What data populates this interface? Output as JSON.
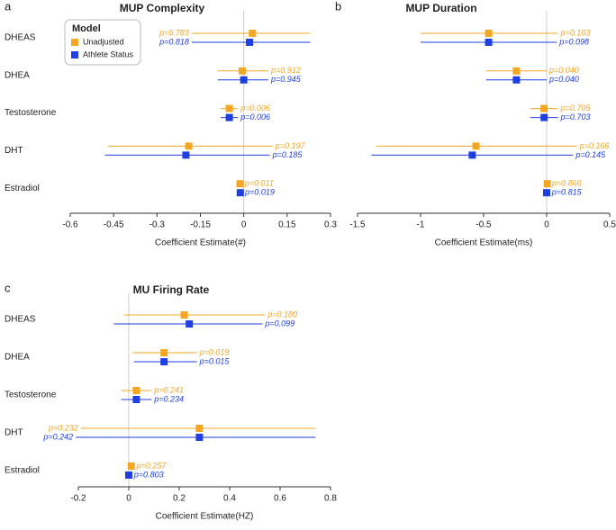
{
  "chart_data": [
    {
      "type": "forest",
      "panel": "a",
      "title": "MUP Complexity",
      "xlabel": "Coefficient Estimate(#)",
      "legend_title": "Model",
      "categories": [
        "DHEAS",
        "DHEA",
        "Testosterone",
        "DHT",
        "Estradiol"
      ],
      "xlim": [
        -0.6,
        0.3
      ],
      "xticks": [
        -0.6,
        -0.45,
        -0.3,
        -0.15,
        0,
        0.15,
        0.3
      ],
      "series": [
        {
          "name": "Unadjusted",
          "color": "#f5a623",
          "values": [
            0.03,
            -0.005,
            -0.05,
            -0.19,
            -0.013
          ],
          "lower": [
            -0.18,
            -0.09,
            -0.08,
            -0.47,
            -0.02
          ],
          "upper": [
            0.23,
            0.085,
            -0.02,
            0.1,
            -0.006
          ],
          "p_labels": [
            "p=0.783",
            "p=0.912",
            "p=0.006",
            "p=0.197",
            "p=0.011"
          ]
        },
        {
          "name": "Athlete Status",
          "color": "#1f3fe0",
          "values": [
            0.02,
            0.0,
            -0.05,
            -0.2,
            -0.012
          ],
          "lower": [
            -0.18,
            -0.09,
            -0.08,
            -0.48,
            -0.02
          ],
          "upper": [
            0.23,
            0.085,
            -0.02,
            0.09,
            -0.005
          ],
          "p_labels": [
            "p=0.818",
            "p=0.945",
            "p=0.006",
            "p=0.185",
            "p=0.019"
          ]
        }
      ]
    },
    {
      "type": "forest",
      "panel": "b",
      "title": "MUP Duration",
      "xlabel": "Coefficient Estimate(ms)",
      "categories": [
        null,
        null,
        null,
        null,
        null
      ],
      "xlim": [
        -1.5,
        0.5
      ],
      "xticks": [
        -1.5,
        -1,
        -0.5,
        0,
        0.5
      ],
      "series": [
        {
          "color": "#f5a623",
          "values": [
            -0.46,
            -0.24,
            -0.02,
            -0.56,
            0.005
          ],
          "lower": [
            -1.0,
            -0.48,
            -0.13,
            -1.35,
            -0.01
          ],
          "upper": [
            0.09,
            0.0,
            0.09,
            0.24,
            0.02
          ],
          "p_labels": [
            "p=0.103",
            "p=0.040",
            "p=0.705",
            "p=0.166",
            "p=0.866"
          ]
        },
        {
          "color": "#1f3fe0",
          "values": [
            -0.46,
            -0.24,
            -0.02,
            -0.59,
            0.0
          ],
          "lower": [
            -1.0,
            -0.48,
            -0.13,
            -1.39,
            -0.01
          ],
          "upper": [
            0.08,
            0.0,
            0.09,
            0.21,
            0.02
          ],
          "p_labels": [
            "p=0.098",
            "p=0.040",
            "p=0.703",
            "p=0.145",
            "p=0.815"
          ]
        }
      ]
    },
    {
      "type": "forest",
      "panel": "c",
      "title": "MU Firing Rate",
      "xlabel": "Coefficient Estimate(HZ)",
      "categories": [
        "DHEAS",
        "DHEA",
        "Testosterone",
        "DHT",
        "Estradiol"
      ],
      "xlim": [
        -0.2,
        0.8
      ],
      "xticks": [
        -0.2,
        0,
        0.2,
        0.4,
        0.6,
        0.8
      ],
      "series": [
        {
          "color": "#f5a623",
          "values": [
            0.22,
            0.14,
            0.03,
            0.28,
            0.01
          ],
          "lower": [
            -0.02,
            0.015,
            -0.03,
            -0.19,
            0.0
          ],
          "upper": [
            0.54,
            0.27,
            0.09,
            0.74,
            0.02
          ],
          "p_labels": [
            "p=0.180",
            "p=0.019",
            "p=0.241",
            "p=0.232",
            "p=0.257"
          ]
        },
        {
          "color": "#1f3fe0",
          "values": [
            0.24,
            0.14,
            0.03,
            0.28,
            0.0
          ],
          "lower": [
            -0.06,
            0.02,
            -0.03,
            -0.21,
            -0.01
          ],
          "upper": [
            0.53,
            0.27,
            0.09,
            0.74,
            0.01
          ],
          "p_labels": [
            "p=0.099",
            "p=0.015",
            "p=0.234",
            "p=0.242",
            "p=0.803"
          ]
        }
      ]
    }
  ]
}
